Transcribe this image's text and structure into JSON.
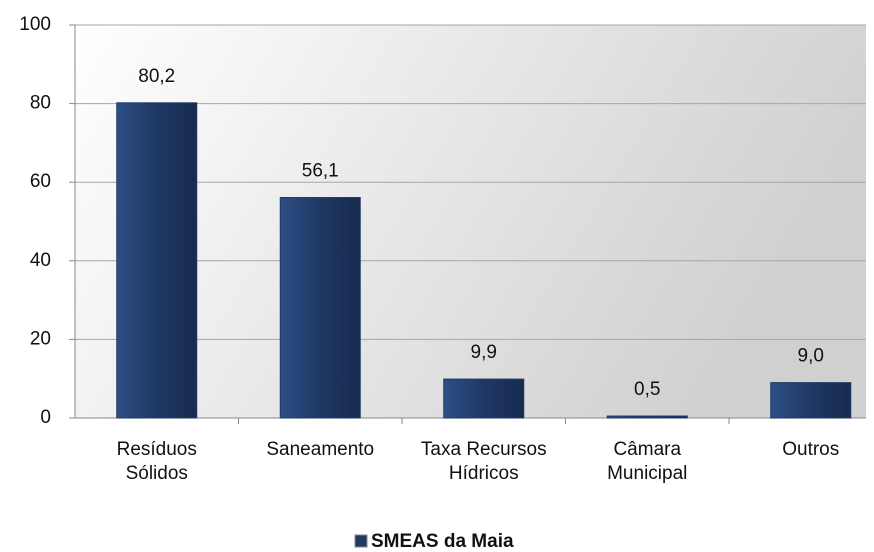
{
  "chart_data": {
    "type": "bar",
    "categories": [
      "Resíduos\nSólidos",
      "Saneamento",
      "Taxa Recursos\nHídricos",
      "Câmara\nMunicipal",
      "Outros"
    ],
    "series": [
      {
        "name": "SMEAS da Maia",
        "color": "#1f3864",
        "values": [
          80.2,
          56.1,
          9.9,
          0.5,
          9.0
        ],
        "value_labels": [
          "80,2",
          "56,1",
          "9,9",
          "0,5",
          "9,0"
        ]
      }
    ],
    "ylim": [
      0,
      100
    ],
    "yticks": [
      0,
      20,
      40,
      60,
      80,
      100
    ],
    "grid": true,
    "legend": "bottom"
  }
}
